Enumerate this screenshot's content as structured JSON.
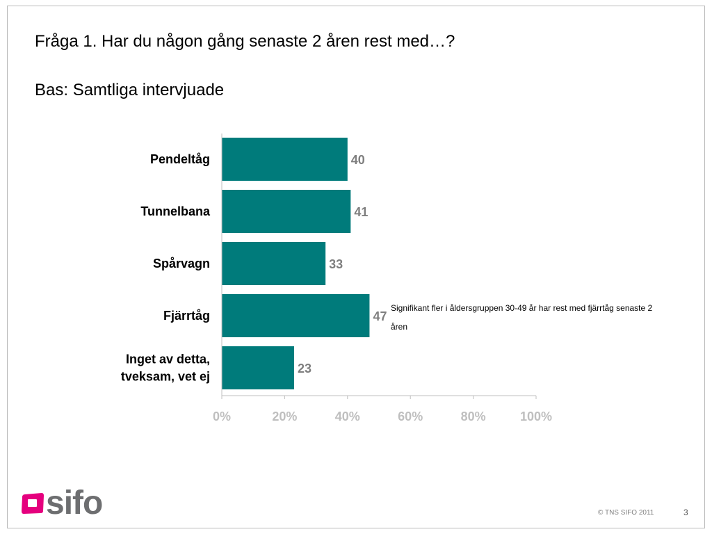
{
  "slide": {
    "question": "Fråga 1. Har du någon gång senaste 2 åren rest med…?",
    "base": "Bas: Samtliga intervjuade",
    "annotation": "Signifikant fler i åldersgruppen 30-49 år har rest med fjärrtåg senaste 2 åren",
    "logo_text": "sifo",
    "copyright": "© TNS SIFO 2011",
    "page_number": "3"
  },
  "colors": {
    "bar": "#007b7b",
    "logo_accent": "#e5007e",
    "logo_text": "#6d6e70",
    "value_label": "#7f7f7f",
    "tick_label": "#bfbfbf",
    "axis": "#bfbfbf"
  },
  "chart_data": {
    "type": "bar",
    "orientation": "horizontal",
    "categories": [
      "Pendeltåg",
      "Tunnelbana",
      "Spårvagn",
      "Fjärrtåg",
      "Inget av detta, tveksam, vet ej"
    ],
    "category_lines": [
      [
        "Pendeltåg"
      ],
      [
        "Tunnelbana"
      ],
      [
        "Spårvagn"
      ],
      [
        "Fjärrtåg"
      ],
      [
        "Inget av detta,",
        "tveksam, vet ej"
      ]
    ],
    "values": [
      40,
      41,
      33,
      47,
      23
    ],
    "value_labels": [
      "40",
      "41",
      "33",
      "47",
      "23"
    ],
    "xlim": [
      0,
      100
    ],
    "xticks": [
      0,
      20,
      40,
      60,
      80,
      100
    ],
    "xtick_labels": [
      "0%",
      "20%",
      "40%",
      "60%",
      "80%",
      "100%"
    ],
    "title": "",
    "xlabel": "",
    "ylabel": "",
    "grid": false,
    "legend": false
  }
}
